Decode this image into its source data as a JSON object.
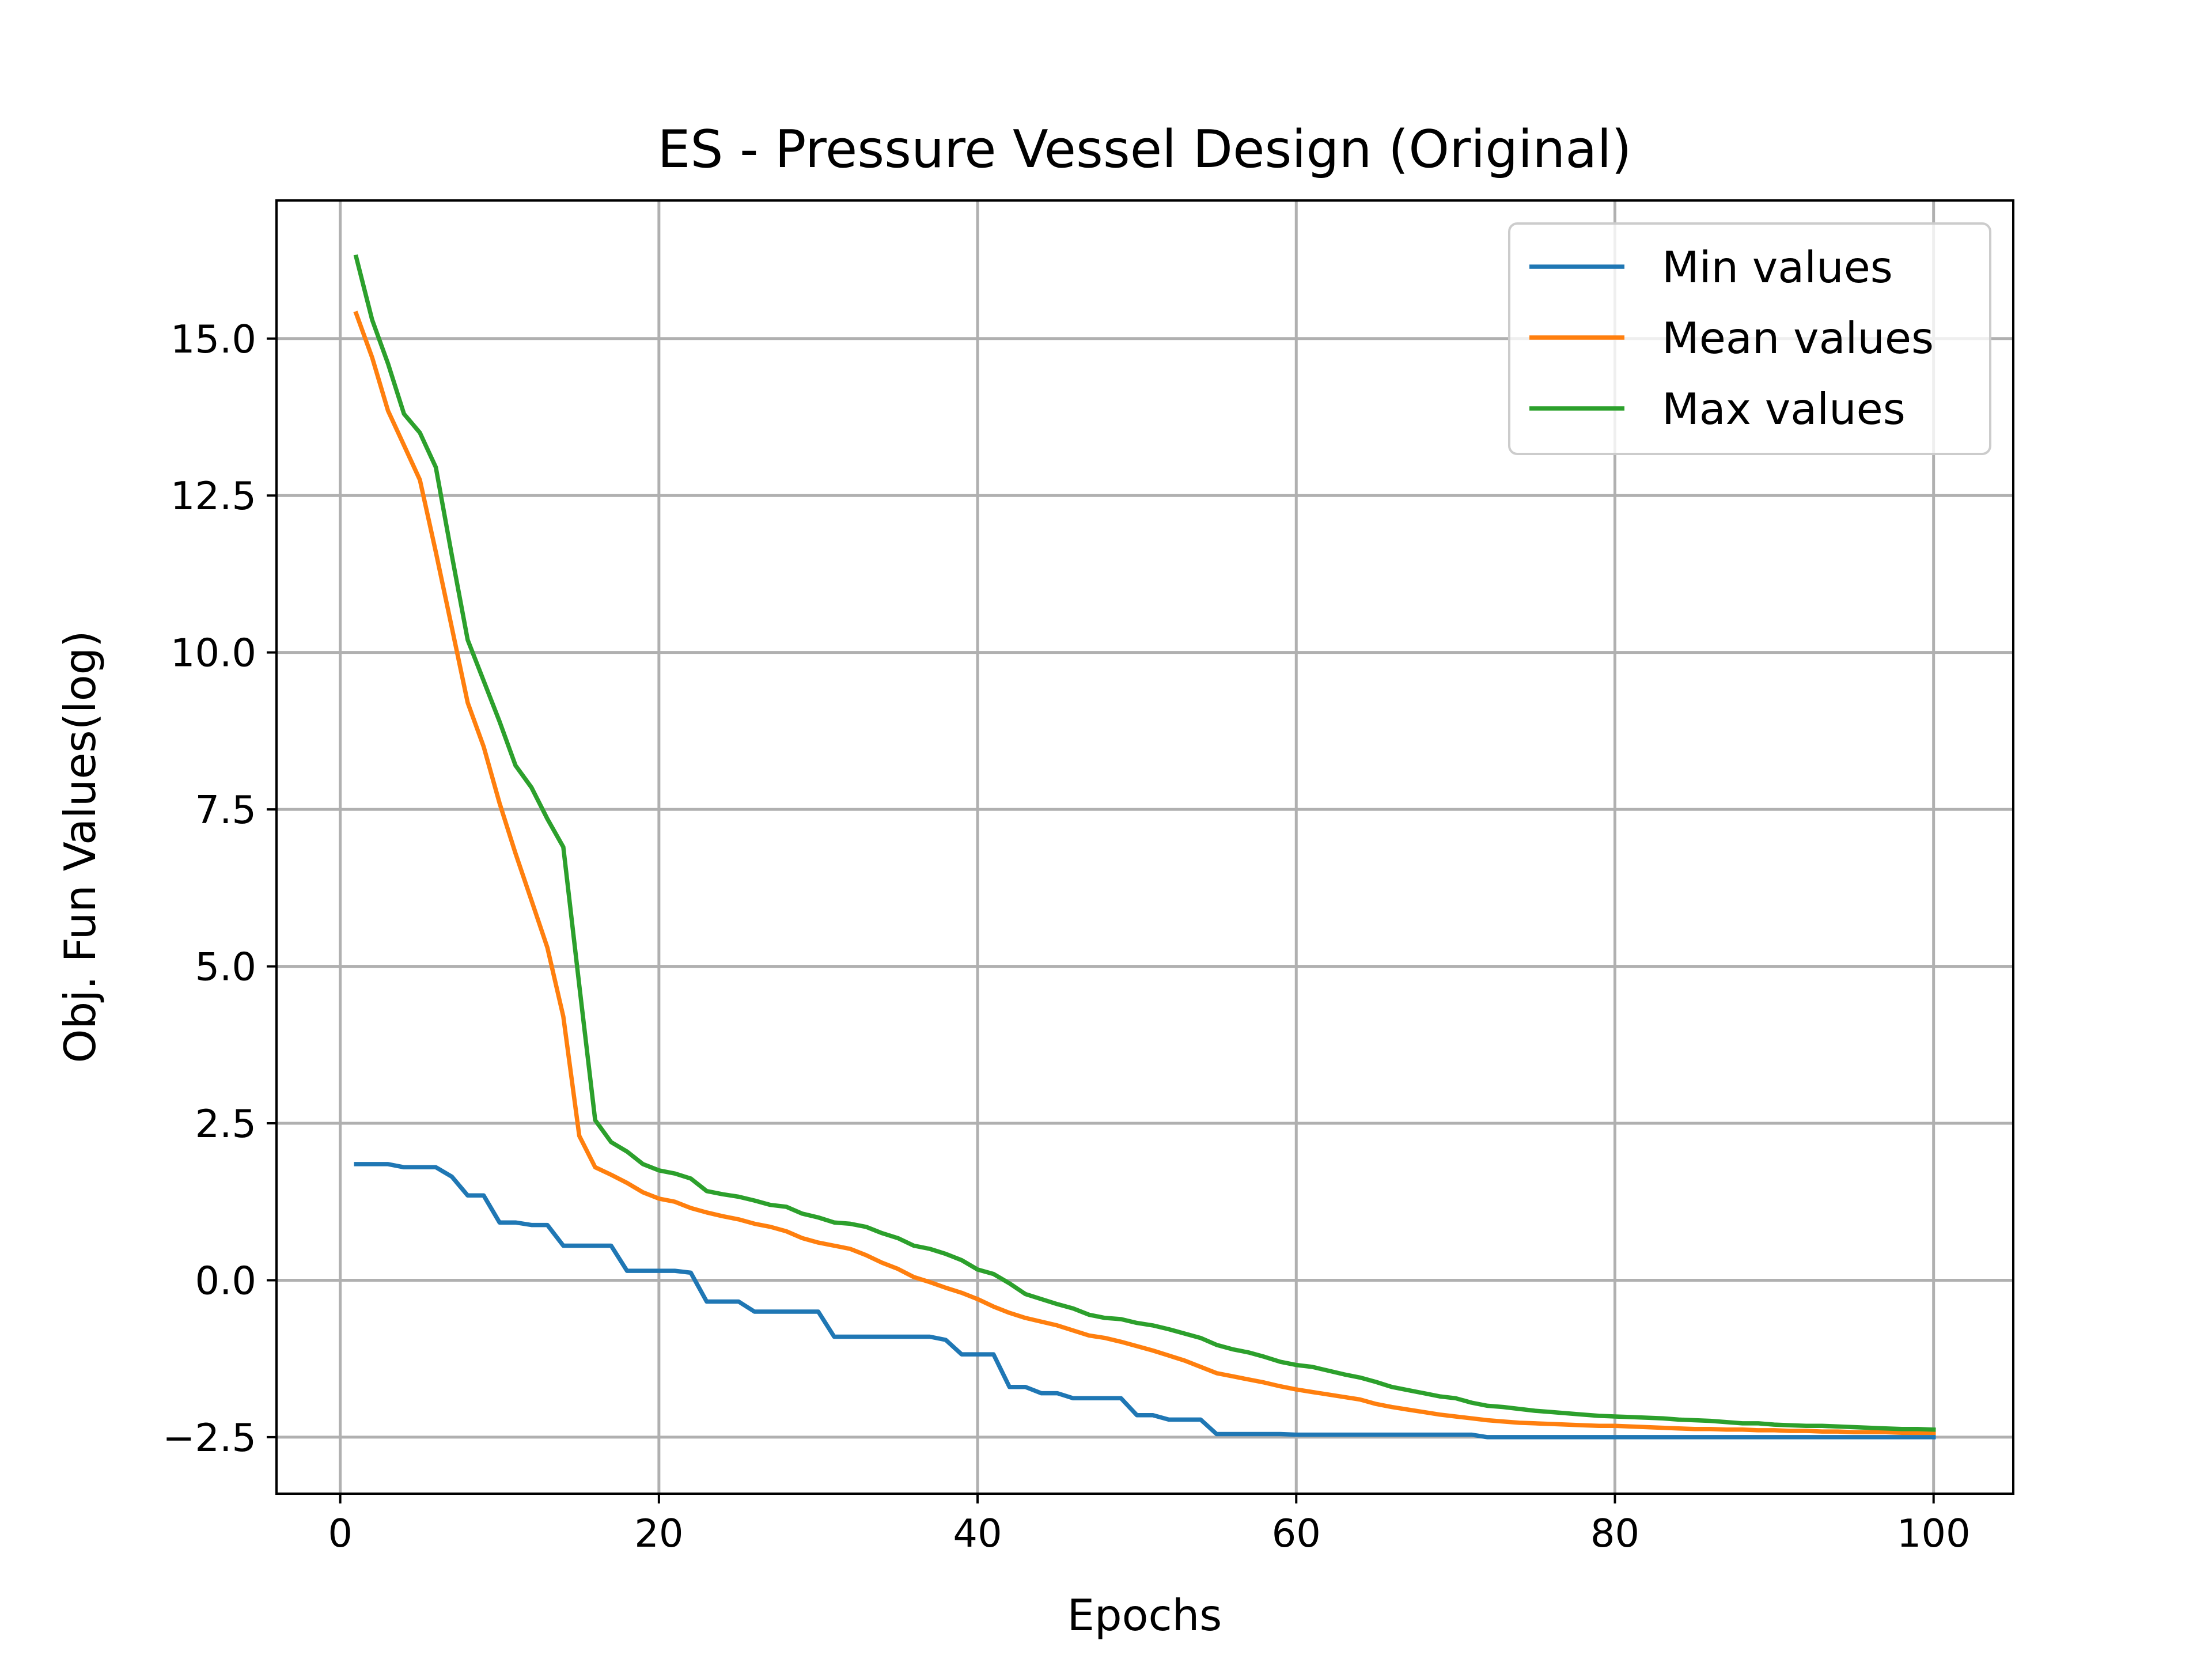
{
  "chart_data": {
    "type": "line",
    "title": "ES - Pressure Vessel Design (Original)",
    "xlabel": "Epochs",
    "ylabel": "Obj. Fun Values(log)",
    "xlim": [
      -4,
      105
    ],
    "ylim": [
      -3.4,
      17.2
    ],
    "xticks": [
      0,
      20,
      40,
      60,
      80,
      100
    ],
    "xtick_labels": [
      "0",
      "20",
      "40",
      "60",
      "80",
      "100"
    ],
    "yticks": [
      -2.5,
      0.0,
      2.5,
      5.0,
      7.5,
      10.0,
      12.5,
      15.0
    ],
    "ytick_labels": [
      "−2.5",
      "0.0",
      "2.5",
      "5.0",
      "7.5",
      "10.0",
      "12.5",
      "15.0"
    ],
    "grid": true,
    "legend_position": "top-right",
    "x": [
      1,
      2,
      3,
      4,
      5,
      6,
      7,
      8,
      9,
      10,
      11,
      12,
      13,
      14,
      15,
      16,
      17,
      18,
      19,
      20,
      21,
      22,
      23,
      24,
      25,
      26,
      27,
      28,
      29,
      30,
      31,
      32,
      33,
      34,
      35,
      36,
      37,
      38,
      39,
      40,
      41,
      42,
      43,
      44,
      45,
      46,
      47,
      48,
      49,
      50,
      51,
      52,
      53,
      54,
      55,
      56,
      57,
      58,
      59,
      60,
      61,
      62,
      63,
      64,
      65,
      66,
      67,
      68,
      69,
      70,
      71,
      72,
      73,
      74,
      75,
      76,
      77,
      78,
      79,
      80,
      81,
      82,
      83,
      84,
      85,
      86,
      87,
      88,
      89,
      90,
      91,
      92,
      93,
      94,
      95,
      96,
      97,
      98,
      99,
      100
    ],
    "series": [
      {
        "name": "Min values",
        "color": "#1f77b4",
        "values": [
          1.85,
          1.85,
          1.85,
          1.8,
          1.8,
          1.8,
          1.65,
          1.35,
          1.35,
          0.92,
          0.92,
          0.88,
          0.88,
          0.55,
          0.55,
          0.55,
          0.55,
          0.15,
          0.15,
          0.15,
          0.15,
          0.12,
          -0.34,
          -0.34,
          -0.34,
          -0.5,
          -0.5,
          -0.5,
          -0.5,
          -0.5,
          -0.9,
          -0.9,
          -0.9,
          -0.9,
          -0.9,
          -0.9,
          -0.9,
          -0.95,
          -1.18,
          -1.18,
          -1.18,
          -1.7,
          -1.7,
          -1.8,
          -1.8,
          -1.88,
          -1.88,
          -1.88,
          -1.88,
          -2.15,
          -2.15,
          -2.22,
          -2.22,
          -2.22,
          -2.45,
          -2.45,
          -2.45,
          -2.45,
          -2.45,
          -2.46,
          -2.46,
          -2.46,
          -2.46,
          -2.46,
          -2.46,
          -2.46,
          -2.46,
          -2.46,
          -2.46,
          -2.46,
          -2.46,
          -2.5,
          -2.5,
          -2.5,
          -2.5,
          -2.5,
          -2.5,
          -2.5,
          -2.5,
          -2.5,
          -2.5,
          -2.5,
          -2.5,
          -2.5,
          -2.5,
          -2.5,
          -2.5,
          -2.5,
          -2.5,
          -2.5,
          -2.5,
          -2.5,
          -2.5,
          -2.5,
          -2.5,
          -2.5,
          -2.5,
          -2.5,
          -2.5,
          -2.5
        ]
      },
      {
        "name": "Mean values",
        "color": "#ff7f0e",
        "values": [
          15.4,
          14.7,
          13.85,
          13.3,
          12.75,
          11.6,
          10.4,
          9.2,
          8.5,
          7.6,
          6.8,
          6.05,
          5.3,
          4.2,
          2.3,
          1.8,
          1.68,
          1.55,
          1.4,
          1.3,
          1.25,
          1.15,
          1.08,
          1.02,
          0.97,
          0.9,
          0.85,
          0.78,
          0.67,
          0.6,
          0.55,
          0.5,
          0.4,
          0.28,
          0.18,
          0.05,
          -0.03,
          -0.12,
          -0.2,
          -0.3,
          -0.42,
          -0.52,
          -0.6,
          -0.66,
          -0.72,
          -0.8,
          -0.88,
          -0.92,
          -0.98,
          -1.05,
          -1.12,
          -1.2,
          -1.28,
          -1.38,
          -1.48,
          -1.53,
          -1.58,
          -1.63,
          -1.69,
          -1.74,
          -1.78,
          -1.82,
          -1.86,
          -1.9,
          -1.97,
          -2.02,
          -2.06,
          -2.1,
          -2.14,
          -2.17,
          -2.2,
          -2.23,
          -2.25,
          -2.27,
          -2.28,
          -2.29,
          -2.3,
          -2.31,
          -2.32,
          -2.32,
          -2.33,
          -2.34,
          -2.35,
          -2.36,
          -2.37,
          -2.37,
          -2.38,
          -2.38,
          -2.39,
          -2.39,
          -2.4,
          -2.4,
          -2.41,
          -2.41,
          -2.42,
          -2.42,
          -2.42,
          -2.43,
          -2.43,
          -2.43
        ]
      },
      {
        "name": "Max values",
        "color": "#2ca02c",
        "values": [
          16.3,
          15.3,
          14.6,
          13.8,
          13.5,
          12.95,
          11.55,
          10.2,
          9.55,
          8.9,
          8.2,
          7.85,
          7.35,
          6.9,
          4.7,
          2.55,
          2.2,
          2.05,
          1.85,
          1.75,
          1.7,
          1.62,
          1.42,
          1.37,
          1.33,
          1.27,
          1.2,
          1.17,
          1.06,
          1.0,
          0.92,
          0.9,
          0.85,
          0.75,
          0.67,
          0.55,
          0.5,
          0.42,
          0.32,
          0.17,
          0.1,
          -0.05,
          -0.22,
          -0.3,
          -0.38,
          -0.45,
          -0.55,
          -0.6,
          -0.62,
          -0.68,
          -0.72,
          -0.78,
          -0.85,
          -0.92,
          -1.03,
          -1.1,
          -1.15,
          -1.22,
          -1.3,
          -1.35,
          -1.38,
          -1.44,
          -1.5,
          -1.55,
          -1.62,
          -1.7,
          -1.75,
          -1.8,
          -1.85,
          -1.88,
          -1.95,
          -2.0,
          -2.02,
          -2.05,
          -2.08,
          -2.1,
          -2.12,
          -2.14,
          -2.16,
          -2.17,
          -2.18,
          -2.19,
          -2.2,
          -2.22,
          -2.23,
          -2.24,
          -2.26,
          -2.28,
          -2.28,
          -2.3,
          -2.31,
          -2.32,
          -2.32,
          -2.33,
          -2.34,
          -2.35,
          -2.36,
          -2.37,
          -2.37,
          -2.38
        ]
      }
    ]
  }
}
